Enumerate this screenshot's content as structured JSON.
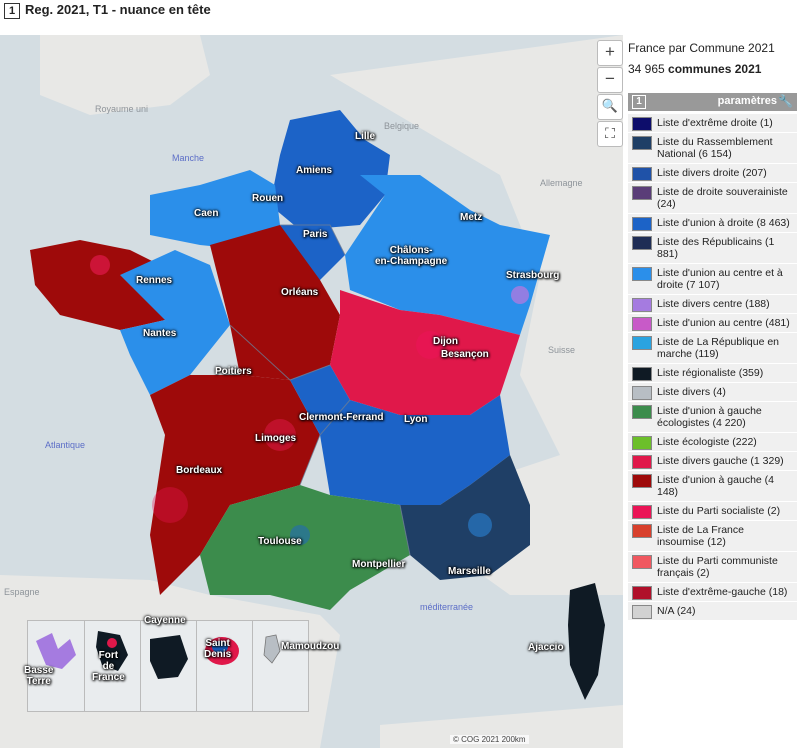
{
  "header": {
    "index": "1",
    "title": "Reg. 2021, T1 - nuance en tête"
  },
  "map": {
    "seas": {
      "manche": "Manche",
      "atlantique": "Atlantique",
      "mediterranee": "méditerranée"
    },
    "countries": {
      "royaume_uni": "Royaume uni",
      "belgique": "Belgique",
      "allemagne": "Allemagne",
      "suisse": "Suisse",
      "espagne": "Espagne"
    },
    "cities": {
      "lille": "Lille",
      "amiens": "Amiens",
      "rouen": "Rouen",
      "caen": "Caen",
      "paris": "Paris",
      "metz": "Metz",
      "chalons": "Châlons-\nen-Champagne",
      "strasbourg": "Strasbourg",
      "rennes": "Rennes",
      "orleans": "Orléans",
      "nantes": "Nantes",
      "dijon": "Dijon",
      "besancon": "Besançon",
      "poitiers": "Poitiers",
      "clermont": "Clermont-Ferrand",
      "lyon": "Lyon",
      "limoges": "Limoges",
      "bordeaux": "Bordeaux",
      "toulouse": "Toulouse",
      "montpellier": "Montpellier",
      "marseille": "Marseille",
      "ajaccio": "Ajaccio"
    },
    "overseas": {
      "basse_terre": "Basse\nTerre",
      "fort_de_france": "Fort\nde\nFrance",
      "cayenne": "Cayenne",
      "saint_denis": "Saint\nDenis",
      "mamoudzou": "Mamoudzou"
    },
    "controls": {
      "zoom_in": "+",
      "zoom_out": "−",
      "search": "🔍",
      "fullscreen": "⛶"
    },
    "attribution": "© COG 2021  200km"
  },
  "panel": {
    "title": "France par Commune 2021",
    "count_number": "34 965",
    "count_label": "communes 2021",
    "params_index": "1",
    "params_label": "paramètres",
    "params_icon": "wrench-icon"
  },
  "legend": [
    {
      "label": "Liste d'extrême droite (1)",
      "color": "#0d0d6b"
    },
    {
      "label": "Liste du Rassemblement National (6 154)",
      "color": "#1f3f66"
    },
    {
      "label": "Liste divers droite (207)",
      "color": "#1f52a8"
    },
    {
      "label": "Liste de droite souverainiste (24)",
      "color": "#5a3d78"
    },
    {
      "label": "Liste d'union à droite (8 463)",
      "color": "#1c63c7"
    },
    {
      "label": "Liste des Républicains (1 881)",
      "color": "#1f2d55"
    },
    {
      "label": "Liste d'union au centre et à droite (7 107)",
      "color": "#2b8fea"
    },
    {
      "label": "Liste divers centre (188)",
      "color": "#a57be0"
    },
    {
      "label": "Liste d'union au centre (481)",
      "color": "#c85ac8"
    },
    {
      "label": "Liste de La République en marche (119)",
      "color": "#2aa3e0"
    },
    {
      "label": "Liste régionaliste (359)",
      "color": "#0f1a24"
    },
    {
      "label": "Liste divers (4)",
      "color": "#b8bec4"
    },
    {
      "label": "Liste d'union à gauche écologistes (4 220)",
      "color": "#3c8c4c"
    },
    {
      "label": "Liste écologiste (222)",
      "color": "#6cbf2a"
    },
    {
      "label": "Liste divers gauche (1 329)",
      "color": "#e0184a"
    },
    {
      "label": "Liste d'union à gauche (4 148)",
      "color": "#9e0a0a"
    },
    {
      "label": "Liste du Parti socialiste (2)",
      "color": "#ea1456"
    },
    {
      "label": "Liste de La France insoumise (12)",
      "color": "#d8402c"
    },
    {
      "label": "Liste du Parti communiste français (2)",
      "color": "#f05860"
    },
    {
      "label": "Liste d'extrême-gauche (18)",
      "color": "#b0102a"
    },
    {
      "label": "N/A (24)",
      "color": "#d2d2d2"
    }
  ]
}
